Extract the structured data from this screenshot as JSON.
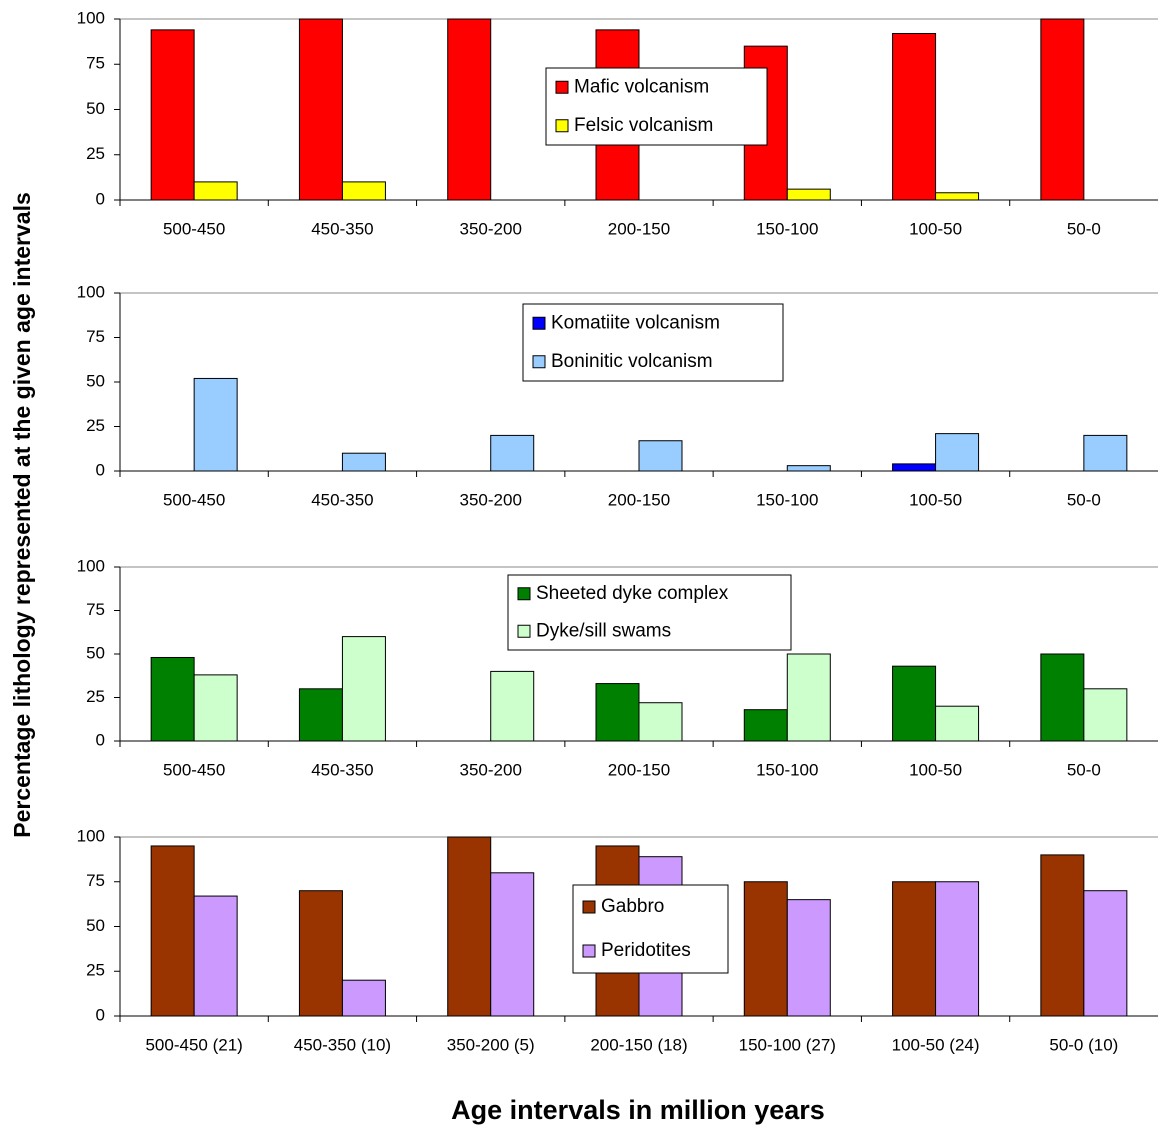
{
  "y_label": "Percentage lithology represented at the given age intervals",
  "x_label": "Age intervals in million years",
  "chart_data": [
    {
      "type": "bar",
      "categories": [
        "500-450",
        "450-350",
        "350-200",
        "200-150",
        "150-100",
        "100-50",
        "50-0"
      ],
      "series": [
        {
          "name": "Mafic volcanism",
          "color": "#ff0000",
          "values": [
            94,
            100,
            100,
            94,
            85,
            92,
            100
          ]
        },
        {
          "name": "Felsic volcanism",
          "color": "#ffff00",
          "values": [
            10,
            10,
            0,
            0,
            6,
            4,
            0
          ]
        }
      ],
      "ylim": [
        0,
        100
      ],
      "yticks": [
        0,
        25,
        50,
        75,
        100
      ]
    },
    {
      "type": "bar",
      "categories": [
        "500-450",
        "450-350",
        "350-200",
        "200-150",
        "150-100",
        "100-50",
        "50-0"
      ],
      "series": [
        {
          "name": "Komatiite volcanism",
          "color": "#0000ff",
          "values": [
            0,
            0,
            0,
            0,
            0,
            4,
            0
          ]
        },
        {
          "name": "Boninitic volcanism",
          "color": "#99ccff",
          "values": [
            52,
            10,
            20,
            17,
            3,
            21,
            20
          ]
        }
      ],
      "ylim": [
        0,
        100
      ],
      "yticks": [
        0,
        25,
        50,
        75,
        100
      ]
    },
    {
      "type": "bar",
      "categories": [
        "500-450",
        "450-350",
        "350-200",
        "200-150",
        "150-100",
        "100-50",
        "50-0"
      ],
      "series": [
        {
          "name": "Sheeted dyke complex",
          "color": "#008000",
          "values": [
            48,
            30,
            0,
            33,
            18,
            43,
            50
          ]
        },
        {
          "name": "Dyke/sill swams",
          "color": "#ccffcc",
          "values": [
            38,
            60,
            40,
            22,
            50,
            20,
            30
          ]
        }
      ],
      "ylim": [
        0,
        100
      ],
      "yticks": [
        0,
        25,
        50,
        75,
        100
      ]
    },
    {
      "type": "bar",
      "categories": [
        "500-450 (21)",
        "450-350 (10)",
        "350-200 (5)",
        "200-150 (18)",
        "150-100 (27)",
        "100-50 (24)",
        "50-0 (10)"
      ],
      "series": [
        {
          "name": "Gabbro",
          "color": "#993300",
          "values": [
            95,
            70,
            100,
            95,
            75,
            75,
            90
          ]
        },
        {
          "name": "Peridotites",
          "color": "#cc99ff",
          "values": [
            67,
            20,
            80,
            89,
            65,
            75,
            70
          ]
        }
      ],
      "ylim": [
        0,
        100
      ],
      "yticks": [
        0,
        25,
        50,
        75,
        100
      ]
    }
  ]
}
